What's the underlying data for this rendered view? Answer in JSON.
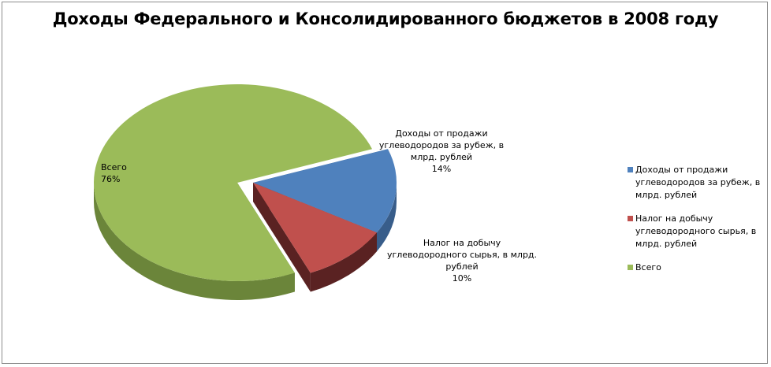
{
  "chart_data": {
    "type": "pie",
    "title": "Доходы Федерального и Консолидированного бюджетов в 2008 году",
    "slices": [
      {
        "name": "Доходы от продажи углеводородов за рубеж, в млрд. рублей",
        "percent": 14,
        "label_lines": [
          "Доходы от продажи",
          "углеводородов за рубеж, в",
          "млрд. рублей"
        ],
        "percent_label": "14%",
        "color": "#4f81bd",
        "side": "#385d8a"
      },
      {
        "name": "Налог на добычу углеводородного сырья, в млрд. рублей",
        "percent": 10,
        "label_lines": [
          "Налог на добычу",
          "углеводородного сырья, в млрд.",
          "рублей"
        ],
        "percent_label": "10%",
        "color": "#c0504d",
        "side": "#5a2222"
      },
      {
        "name": "Всего",
        "percent": 76,
        "label_lines": [
          "Всего"
        ],
        "percent_label": "76%",
        "color": "#9bbb59",
        "side": "#6b853a"
      }
    ],
    "legend": {
      "position": "right",
      "items": [
        {
          "lines": [
            "Доходы от продажи",
            "углеводородов за рубеж, в",
            "млрд. рублей"
          ],
          "color": "#4f81bd"
        },
        {
          "lines": [
            "Налог на добычу",
            "углеводородного сырья, в",
            "млрд. рублей"
          ],
          "color": "#c0504d"
        },
        {
          "lines": [
            "Всего"
          ],
          "color": "#9bbb59"
        }
      ]
    }
  }
}
